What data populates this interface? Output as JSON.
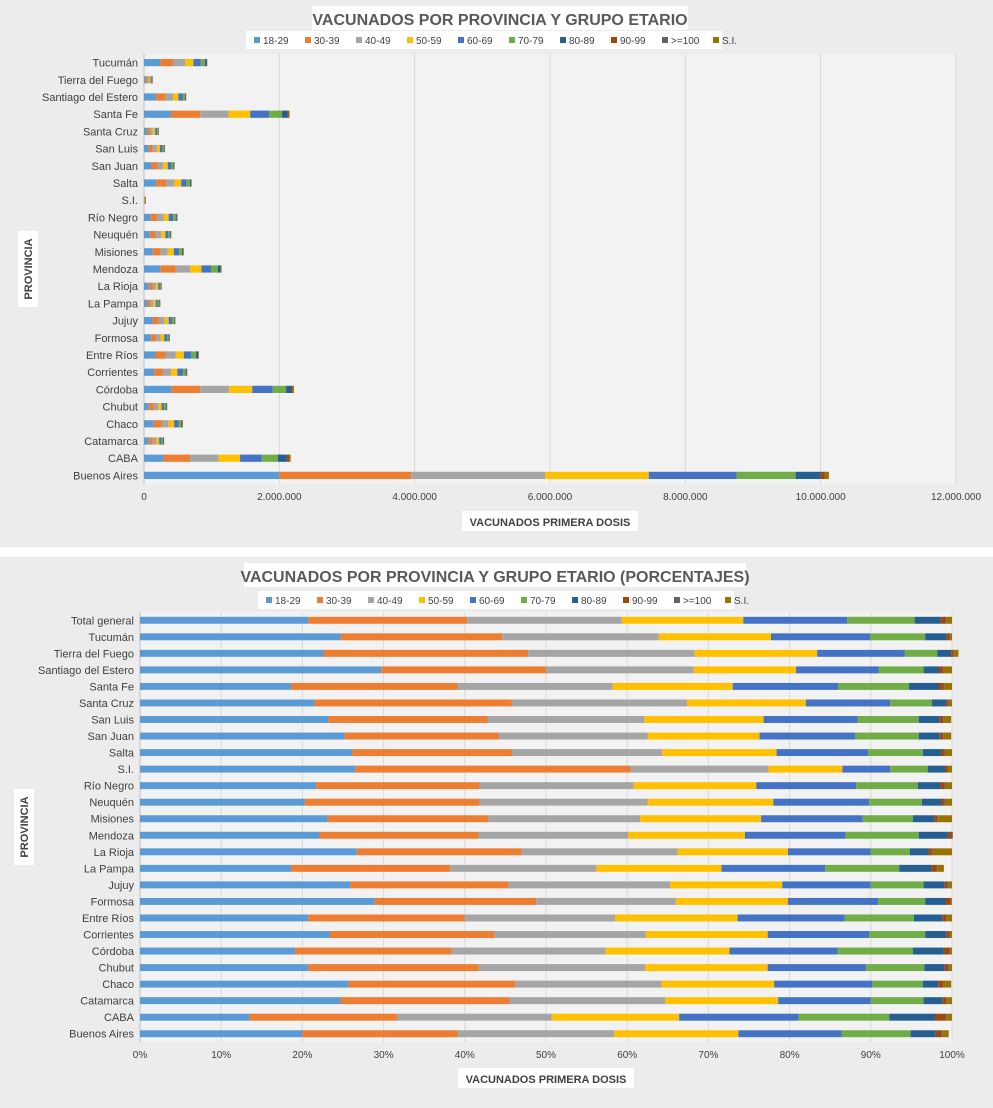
{
  "colors": {
    "18-29": "#5b9bd5",
    "30-39": "#ed7d31",
    "40-49": "#a5a5a5",
    "50-59": "#ffc000",
    "60-69": "#4472c4",
    "70-79": "#70ad47",
    "80-89": "#255e91",
    "90-99": "#9e480e",
    ">=100": "#636363",
    "S.I.": "#997300"
  },
  "chart_data": [
    {
      "type": "bar",
      "orientation": "horizontal-stacked",
      "title": "VACUNADOS POR PROVINCIA Y GRUPO ETARIO",
      "xlabel": "VACUNADOS PRIMERA  DOSIS",
      "ylabel": "PROVINCIA",
      "xlim": [
        0,
        12000000
      ],
      "xticks": [
        0,
        2000000,
        4000000,
        6000000,
        8000000,
        10000000,
        12000000
      ],
      "xtick_labels": [
        "0",
        "2.000.000",
        "4.000.000",
        "6.000.000",
        "8.000.000",
        "10.000.000",
        "12.000.000"
      ],
      "legend_position": "top",
      "grid": "vertical",
      "categories": [
        "Buenos Aires",
        "CABA",
        "Catamarca",
        "Chaco",
        "Chubut",
        "Córdoba",
        "Corrientes",
        "Entre Ríos",
        "Formosa",
        "Jujuy",
        "La Pampa",
        "La Rioja",
        "Mendoza",
        "Misiones",
        "Neuquén",
        "Río Negro",
        "S.I.",
        "Salta",
        "San Juan",
        "San Luis",
        "Santa Cruz",
        "Santa Fe",
        "Santiago del Estero",
        "Tierra del Fuego",
        "Tucumán"
      ],
      "series": [
        {
          "name": "18-29",
          "values": [
            2000000,
            290000,
            70000,
            145000,
            70000,
            410000,
            150000,
            170000,
            105000,
            125000,
            45000,
            70000,
            240000,
            130000,
            85000,
            100000,
            6000,
            180000,
            110000,
            70000,
            45000,
            400000,
            180000,
            25000,
            240000
          ]
        },
        {
          "name": "30-39",
          "values": [
            1950000,
            390000,
            60000,
            120000,
            70000,
            420000,
            130000,
            150000,
            75000,
            90000,
            45000,
            55000,
            230000,
            115000,
            90000,
            95000,
            8000,
            145000,
            90000,
            60000,
            45000,
            430000,
            140000,
            30000,
            190000
          ]
        },
        {
          "name": "40-49",
          "values": [
            1980000,
            420000,
            55000,
            100000,
            70000,
            430000,
            120000,
            150000,
            65000,
            90000,
            45000,
            50000,
            210000,
            105000,
            80000,
            95000,
            4000,
            125000,
            85000,
            60000,
            40000,
            420000,
            110000,
            20000,
            180000
          ]
        },
        {
          "name": "50-59",
          "values": [
            1530000,
            320000,
            40000,
            80000,
            50000,
            340000,
            95000,
            120000,
            55000,
            60000,
            38000,
            35000,
            170000,
            90000,
            60000,
            75000,
            2000,
            100000,
            65000,
            45000,
            35000,
            320000,
            80000,
            20000,
            120000
          ]
        },
        {
          "name": "60-69",
          "values": [
            1300000,
            320000,
            35000,
            65000,
            40000,
            300000,
            80000,
            110000,
            40000,
            50000,
            30000,
            25000,
            140000,
            80000,
            45000,
            65000,
            1000,
            80000,
            55000,
            40000,
            30000,
            280000,
            65000,
            15000,
            110000
          ]
        },
        {
          "name": "70-79",
          "values": [
            870000,
            240000,
            20000,
            40000,
            25000,
            200000,
            40000,
            70000,
            25000,
            30000,
            20000,
            15000,
            100000,
            40000,
            25000,
            40000,
            1000,
            50000,
            30000,
            20000,
            15000,
            190000,
            30000,
            10000,
            60000
          ]
        },
        {
          "name": "80-89",
          "values": [
            370000,
            130000,
            10000,
            15000,
            10000,
            80000,
            15000,
            30000,
            10000,
            10000,
            10000,
            5000,
            40000,
            15000,
            10000,
            15000,
            500,
            15000,
            10000,
            7000,
            5000,
            80000,
            10000,
            3000,
            25000
          ]
        },
        {
          "name": "90-99",
          "values": [
            60000,
            35000,
            2000,
            5000,
            2000,
            15000,
            3000,
            4000,
            3000,
            2000,
            2000,
            1000,
            6000,
            3000,
            2000,
            3000,
            100,
            3000,
            2000,
            1000,
            1000,
            15000,
            3000,
            500,
            4000
          ]
        },
        {
          "name": ">=100",
          "values": [
            2000,
            2000,
            200,
            300,
            200,
            1000,
            200,
            300,
            200,
            200,
            200,
            100,
            400,
            200,
            200,
            200,
            0,
            200,
            200,
            100,
            100,
            1000,
            200,
            0,
            300
          ]
        },
        {
          "name": "S.I.",
          "values": [
            60000,
            20000,
            3000,
            5000,
            3000,
            20000,
            5000,
            5000,
            2000,
            5000,
            3000,
            3000,
            10000,
            10000,
            5000,
            6000,
            300,
            5000,
            3000,
            2000,
            2000,
            15000,
            5000,
            1000,
            5000
          ]
        }
      ]
    },
    {
      "type": "bar",
      "orientation": "horizontal-stacked-100",
      "title": "VACUNADOS POR PROVINCIA Y GRUPO ETARIO (PORCENTAJES)",
      "xlabel": "VACUNADOS PRIMERA  DOSIS",
      "ylabel": "PROVINCIA",
      "xlim": [
        0,
        100
      ],
      "xticks": [
        0,
        10,
        20,
        30,
        40,
        50,
        60,
        70,
        80,
        90,
        100
      ],
      "xtick_labels": [
        "0%",
        "10%",
        "20%",
        "30%",
        "40%",
        "50%",
        "60%",
        "70%",
        "80%",
        "90%",
        "100%"
      ],
      "legend_position": "top",
      "grid": "vertical",
      "categories": [
        "Buenos Aires",
        "CABA",
        "Catamarca",
        "Chaco",
        "Chubut",
        "Córdoba",
        "Corrientes",
        "Entre Ríos",
        "Formosa",
        "Jujuy",
        "La Pampa",
        "La Rioja",
        "Mendoza",
        "Misiones",
        "Neuquén",
        "Río Negro",
        "S.I.",
        "Salta",
        "San Juan",
        "San Luis",
        "Santa Cruz",
        "Santa Fe",
        "Santiago del Estero",
        "Tierra del Fuego",
        "Tucumán",
        "Total general"
      ],
      "series": [
        {
          "name": "18-29",
          "values": [
            20.0,
            13.5,
            24.7,
            25.7,
            20.7,
            19.1,
            23.4,
            20.7,
            28.9,
            25.9,
            18.6,
            26.7,
            22.1,
            23.1,
            20.3,
            21.7,
            26.5,
            26.1,
            25.2,
            23.2,
            21.5,
            18.6,
            29.7,
            22.6,
            24.7,
            20.7
          ]
        },
        {
          "name": "30-39",
          "values": [
            19.1,
            18.2,
            20.8,
            20.5,
            21.0,
            19.2,
            20.2,
            19.3,
            19.9,
            19.5,
            19.6,
            20.3,
            19.6,
            19.8,
            21.5,
            20.1,
            33.9,
            19.7,
            19.0,
            19.6,
            24.3,
            20.5,
            20.3,
            25.2,
            19.9,
            19.6
          ]
        },
        {
          "name": "40-49",
          "values": [
            19.3,
            19.0,
            19.2,
            18.0,
            20.5,
            19.0,
            18.7,
            18.5,
            17.2,
            19.9,
            18.0,
            19.2,
            18.4,
            18.7,
            20.7,
            19.0,
            17.0,
            18.5,
            18.3,
            19.3,
            21.6,
            19.1,
            18.2,
            20.5,
            19.3,
            19.0
          ]
        },
        {
          "name": "50-59",
          "values": [
            15.3,
            15.7,
            13.9,
            13.9,
            15.1,
            15.3,
            15.0,
            15.1,
            13.8,
            13.8,
            15.4,
            13.6,
            14.4,
            14.9,
            15.5,
            15.1,
            9.1,
            14.1,
            13.8,
            14.7,
            14.6,
            14.8,
            12.6,
            15.1,
            13.8,
            15.0
          ]
        },
        {
          "name": "60-69",
          "values": [
            12.7,
            14.7,
            11.4,
            12.1,
            12.1,
            13.3,
            12.5,
            13.2,
            11.1,
            10.9,
            12.8,
            10.2,
            12.4,
            12.5,
            11.8,
            12.3,
            5.9,
            11.3,
            11.8,
            11.6,
            10.4,
            13.0,
            10.2,
            10.8,
            12.2,
            12.8
          ]
        },
        {
          "name": "70-79",
          "values": [
            8.5,
            11.2,
            6.5,
            6.2,
            7.2,
            9.3,
            6.9,
            8.5,
            5.8,
            6.5,
            9.1,
            4.8,
            9.0,
            6.2,
            6.5,
            7.6,
            4.6,
            6.7,
            7.8,
            7.5,
            5.1,
            8.7,
            5.5,
            4.0,
            6.8,
            8.3
          ]
        },
        {
          "name": "80-89",
          "values": [
            3.1,
            5.6,
            2.3,
            1.9,
            2.5,
            3.8,
            2.6,
            3.5,
            2.5,
            2.6,
            4.0,
            2.3,
            3.6,
            2.6,
            2.4,
            2.8,
            2.2,
            2.3,
            2.6,
            2.6,
            1.8,
            3.7,
            1.9,
            1.7,
            2.6,
            3.2
          ]
        },
        {
          "name": "90-99",
          "values": [
            0.7,
            1.3,
            0.5,
            0.6,
            0.5,
            0.7,
            0.4,
            0.5,
            0.6,
            0.4,
            0.6,
            0.4,
            0.5,
            0.4,
            0.4,
            0.5,
            0.3,
            0.4,
            0.4,
            0.4,
            0.3,
            0.6,
            0.5,
            0.3,
            0.4,
            0.6
          ]
        },
        {
          "name": ">=100",
          "values": [
            0.1,
            0.1,
            0.1,
            0.1,
            0.1,
            0.1,
            0.1,
            0.1,
            0.1,
            0.1,
            0.1,
            0.1,
            0.1,
            0.1,
            0.1,
            0.1,
            0.0,
            0.1,
            0.1,
            0.1,
            0.1,
            0.1,
            0.1,
            0.0,
            0.1,
            0.1
          ]
        },
        {
          "name": "S.I.",
          "values": [
            0.8,
            0.7,
            0.6,
            0.9,
            0.3,
            0.2,
            0.2,
            0.6,
            0.1,
            0.4,
            0.8,
            2.4,
            0.0,
            1.7,
            0.8,
            0.8,
            0.5,
            0.8,
            0.9,
            0.9,
            0.3,
            0.9,
            1.0,
            0.6,
            0.2,
            0.7
          ]
        }
      ]
    }
  ]
}
